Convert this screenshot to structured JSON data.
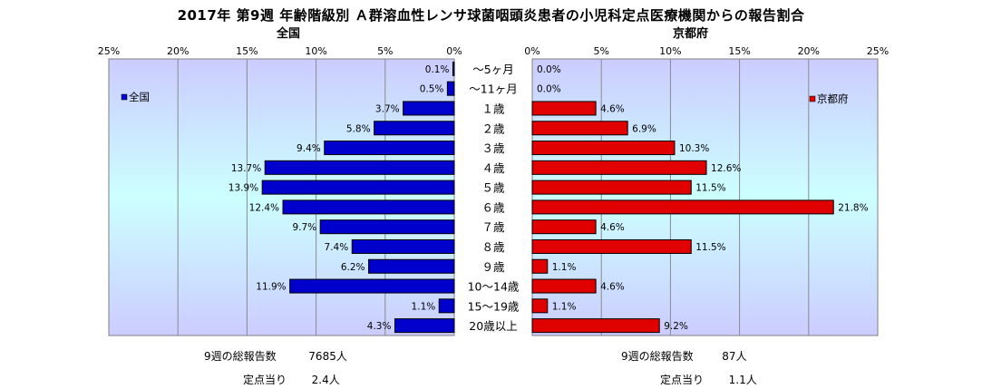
{
  "title": "2017年 第9週 年齢階級別 Ａ群溶血性レンサ球菌咽頭炎患者の小児科定点医療機関からの報告割合",
  "colors": {
    "national": "#0000CC",
    "kyoto": "#E00000",
    "plot_bg_top": "#CCCCFF",
    "plot_bg_mid": "#CCFFFF"
  },
  "chart_data": {
    "type": "bar",
    "orientation": "horizontal-butterfly",
    "categories": [
      "～5ヶ月",
      "～11ヶ月",
      "１歳",
      "２歳",
      "３歳",
      "４歳",
      "５歳",
      "６歳",
      "７歳",
      "８歳",
      "９歳",
      "10～14歳",
      "15～19歳",
      "20歳以上"
    ],
    "xlim": [
      0,
      25
    ],
    "ticks": [
      0,
      5,
      10,
      15,
      20,
      25
    ],
    "tick_labels": [
      "0%",
      "5%",
      "10%",
      "15%",
      "20%",
      "25%"
    ],
    "grid": true,
    "series": [
      {
        "name": "全国",
        "side": "left",
        "subtitle": "全国",
        "legend_position": "top-left",
        "values": [
          0.1,
          0.5,
          3.7,
          5.8,
          9.4,
          13.7,
          13.9,
          12.4,
          9.7,
          7.4,
          6.2,
          11.9,
          1.1,
          4.3
        ],
        "labels": [
          "0.1%",
          "0.5%",
          "3.7%",
          "5.8%",
          "9.4%",
          "13.7%",
          "13.9%",
          "12.4%",
          "9.7%",
          "7.4%",
          "6.2%",
          "11.9%",
          "1.1%",
          "4.3%"
        ]
      },
      {
        "name": "京都府",
        "side": "right",
        "subtitle": "京都府",
        "legend_position": "top-right",
        "values": [
          0.0,
          0.0,
          4.6,
          6.9,
          10.3,
          12.6,
          11.5,
          21.8,
          4.6,
          11.5,
          1.1,
          4.6,
          1.1,
          9.2
        ],
        "labels": [
          "0.0%",
          "0.0%",
          "4.6%",
          "6.9%",
          "10.3%",
          "12.6%",
          "11.5%",
          "21.8%",
          "4.6%",
          "11.5%",
          "1.1%",
          "4.6%",
          "1.1%",
          "9.2%"
        ]
      }
    ]
  },
  "footer": {
    "national": {
      "total_label": "9週の総報告数",
      "total_value": "7685人",
      "per_label": "定点当り",
      "per_value": "2.4人"
    },
    "kyoto": {
      "total_label": "9週の総報告数",
      "total_value": "87人",
      "per_label": "定点当り",
      "per_value": "1.1人"
    }
  }
}
